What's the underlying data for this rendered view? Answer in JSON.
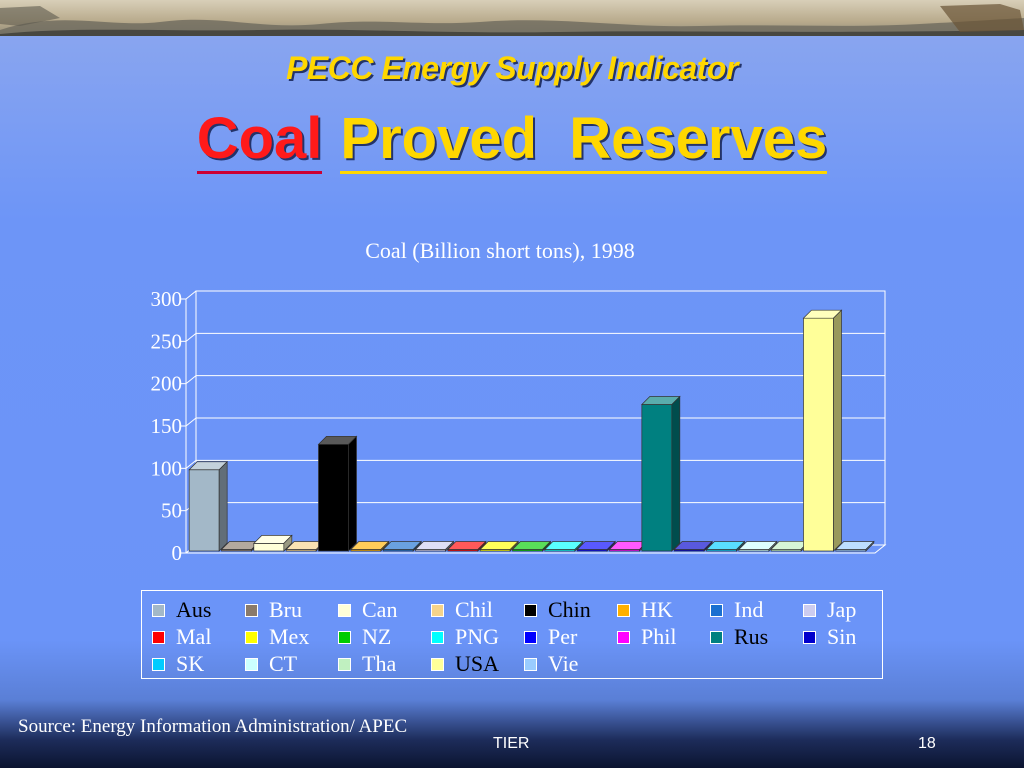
{
  "slide": {
    "title": "PECC Energy Supply Indicator",
    "subtitle_part1": "Coal",
    "subtitle_part2": "Proved  Reserves",
    "source": "Source: Energy Information Administration/ APEC",
    "footer_center": "TIER",
    "page_number": "18"
  },
  "colors": {
    "title": "#ffd700",
    "subtitle_red": "#ff1a1a",
    "background": "#6b94f8"
  },
  "chart_data": {
    "type": "bar",
    "title": "Coal (Billion short tons), 1998",
    "xlabel": "",
    "ylabel": "",
    "ylim": [
      0,
      300
    ],
    "yticks": [
      "0",
      "50",
      "100",
      "150",
      "200",
      "250",
      "300"
    ],
    "grid": true,
    "legend_position": "bottom",
    "categories": [
      "Aus",
      "Bru",
      "Can",
      "Chil",
      "Chin",
      "HK",
      "Ind",
      "Jap",
      "Mal",
      "Mex",
      "NZ",
      "PNG",
      "Per",
      "Phil",
      "Rus",
      "Sin",
      "SK",
      "CT",
      "Tha",
      "USA",
      "Vie"
    ],
    "values": [
      96,
      0,
      9,
      1,
      126,
      0,
      1,
      1,
      1,
      1,
      1,
      1,
      1,
      1,
      173,
      0,
      0,
      1,
      2,
      275,
      0
    ],
    "colors": [
      "#a3b8c8",
      "#8a7a6a",
      "#ffffd8",
      "#f5d38a",
      "#000000",
      "#ffb000",
      "#1a6fd0",
      "#ccccf0",
      "#ff0000",
      "#ffff00",
      "#00cc00",
      "#00ffff",
      "#0000ff",
      "#ff00ff",
      "#008080",
      "#0000cc",
      "#00ccff",
      "#ccffff",
      "#c0f0c0",
      "#ffff99",
      "#99ccff"
    ],
    "legend_dark_labels": [
      "Aus",
      "Chin",
      "Rus",
      "USA"
    ]
  }
}
